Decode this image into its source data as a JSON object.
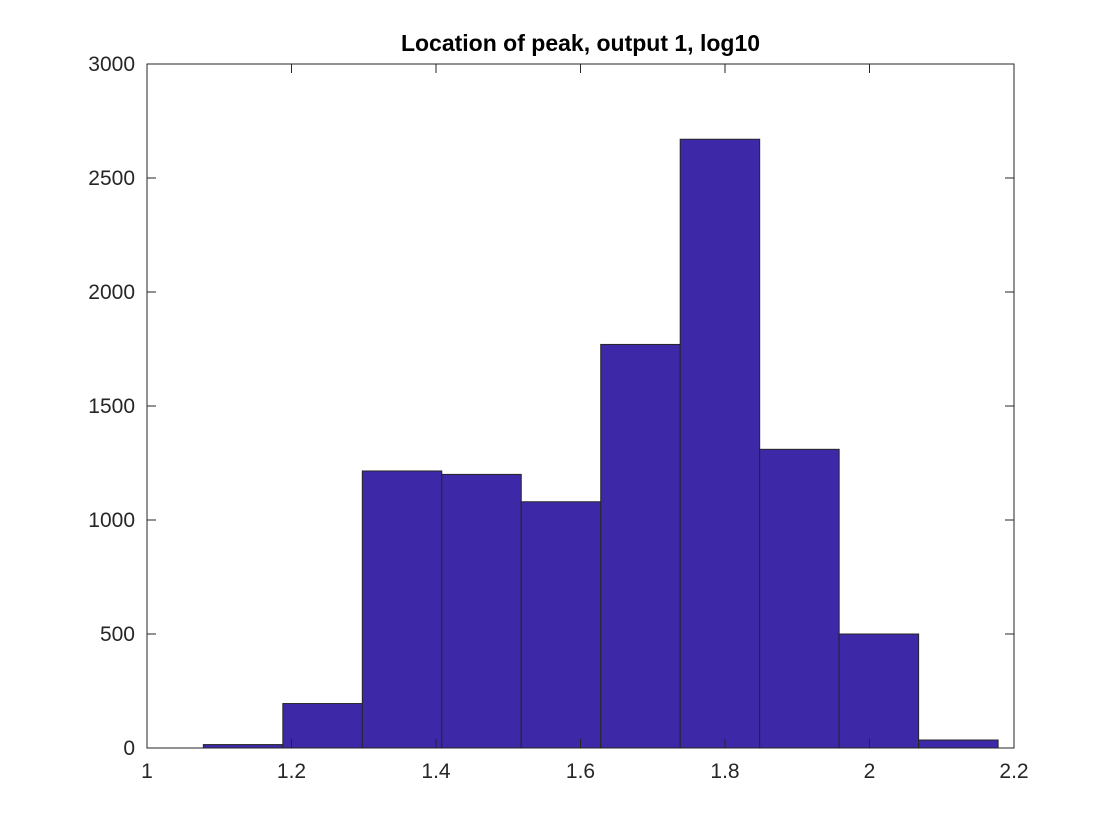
{
  "chart_data": {
    "type": "bar",
    "title": "Location of peak, output 1, log10",
    "xlabel": "",
    "ylabel": "",
    "xlim": [
      1,
      2.2
    ],
    "ylim": [
      0,
      3000
    ],
    "xticks": [
      1,
      1.2,
      1.4,
      1.6,
      1.8,
      2,
      2.2
    ],
    "xtick_labels": [
      "1",
      "1.2",
      "1.4",
      "1.6",
      "1.8",
      "2",
      "2.2"
    ],
    "yticks": [
      0,
      500,
      1000,
      1500,
      2000,
      2500,
      3000
    ],
    "ytick_labels": [
      "0",
      "500",
      "1000",
      "1500",
      "2000",
      "2500",
      "3000"
    ],
    "grid": false,
    "bar_color": "#3d28a8",
    "edge_color": "#262626",
    "bin_edges": [
      1.078,
      1.188,
      1.298,
      1.408,
      1.518,
      1.628,
      1.738,
      1.848,
      1.958,
      2.068,
      2.178
    ],
    "values": [
      15,
      195,
      1215,
      1200,
      1080,
      1770,
      2670,
      1310,
      500,
      35
    ]
  }
}
